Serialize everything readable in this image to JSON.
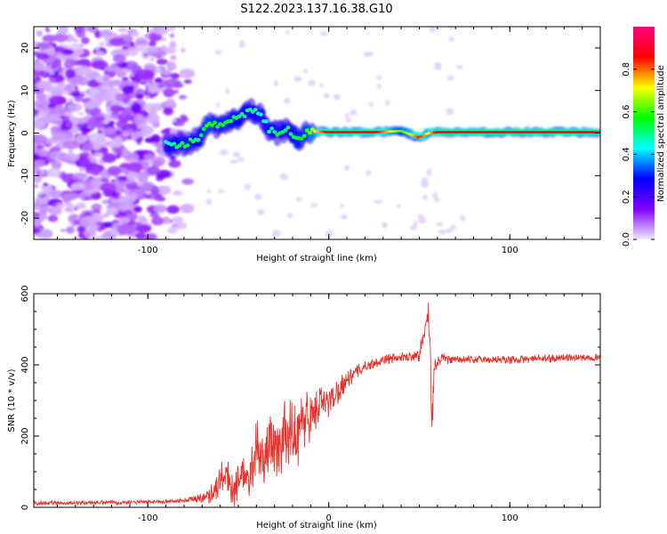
{
  "title": "S122.2023.137.16.38.G10",
  "chart_data": [
    {
      "type": "heatmap",
      "xlabel": "Height of straight line (km)",
      "ylabel": "Frequency (Hz)",
      "xlim": [
        -163,
        150
      ],
      "ylim": [
        -25,
        25
      ],
      "x_ticks": [
        -100,
        0,
        100
      ],
      "y_ticks": [
        -20,
        -10,
        0,
        10,
        20
      ],
      "colorbar": {
        "label": "Normalized spectral amplitude",
        "range": [
          0,
          1
        ],
        "ticks": [
          "0.0",
          "0.2",
          "0.4",
          "0.6",
          "0.8"
        ],
        "tick_values": [
          0,
          0.2,
          0.4,
          0.6,
          0.8
        ],
        "stops": [
          "#f0e8ff",
          "#8000ff",
          "#0000ff",
          "#00ffff",
          "#00ff00",
          "#ffff00",
          "#ff0000",
          "#ff0080"
        ]
      },
      "ridge": [
        {
          "x": -90,
          "y": -2.8,
          "amp": 0.45
        },
        {
          "x": -80,
          "y": -2.5,
          "amp": 0.55
        },
        {
          "x": -72,
          "y": -1.5,
          "amp": 0.5
        },
        {
          "x": -67,
          "y": 2.0,
          "amp": 0.6
        },
        {
          "x": -60,
          "y": 1.5,
          "amp": 0.55
        },
        {
          "x": -55,
          "y": 2.5,
          "amp": 0.55
        },
        {
          "x": -48,
          "y": 4.0,
          "amp": 0.5
        },
        {
          "x": -43,
          "y": 5.5,
          "amp": 0.5
        },
        {
          "x": -38,
          "y": 4.5,
          "amp": 0.45
        },
        {
          "x": -33,
          "y": 1.0,
          "amp": 0.45
        },
        {
          "x": -28,
          "y": 0.0,
          "amp": 0.55
        },
        {
          "x": -22,
          "y": 0.8,
          "amp": 0.5
        },
        {
          "x": -17,
          "y": -2.0,
          "amp": 0.55
        },
        {
          "x": -12,
          "y": 0.5,
          "amp": 0.6
        },
        {
          "x": 0,
          "y": 0.2,
          "amp": 0.9
        },
        {
          "x": 25,
          "y": 0.2,
          "amp": 0.9
        },
        {
          "x": 40,
          "y": 0.5,
          "amp": 0.6
        },
        {
          "x": 45,
          "y": -0.3,
          "amp": 0.7
        },
        {
          "x": 50,
          "y": -1.0,
          "amp": 0.85
        },
        {
          "x": 55,
          "y": 0.0,
          "amp": 0.7
        },
        {
          "x": 60,
          "y": 0.2,
          "amp": 0.9
        },
        {
          "x": 150,
          "y": 0.2,
          "amp": 0.9
        }
      ]
    },
    {
      "type": "line",
      "xlabel": "Height of straight line (km)",
      "ylabel": "SNR (10 * v/v)",
      "xlim": [
        -163,
        150
      ],
      "ylim": [
        0,
        600
      ],
      "x_ticks": [
        -100,
        0,
        100
      ],
      "y_ticks": [
        0,
        200,
        400,
        600
      ],
      "series": [
        {
          "color": "#e8322a",
          "x": [
            -163,
            -150,
            -130,
            -110,
            -95,
            -85,
            -78,
            -72,
            -66,
            -62,
            -58,
            -55,
            -52,
            -48,
            -44,
            -40,
            -36,
            -32,
            -28,
            -24,
            -20,
            -16,
            -12,
            -8,
            -4,
            0,
            5,
            10,
            15,
            20,
            25,
            30,
            35,
            40,
            45,
            50,
            52,
            54,
            55,
            56,
            57,
            58,
            60,
            62,
            65,
            70,
            80,
            90,
            100,
            110,
            120,
            130,
            140,
            150
          ],
          "y": [
            12,
            12,
            13,
            14,
            16,
            18,
            20,
            25,
            35,
            60,
            90,
            70,
            50,
            110,
            60,
            180,
            120,
            200,
            150,
            230,
            190,
            220,
            260,
            270,
            290,
            300,
            330,
            360,
            380,
            395,
            405,
            415,
            418,
            420,
            425,
            430,
            470,
            520,
            560,
            440,
            230,
            380,
            400,
            418,
            416,
            414,
            415,
            415,
            414,
            416,
            418,
            420,
            421,
            423
          ],
          "noise": [
            6,
            6,
            6,
            6,
            6,
            6,
            8,
            12,
            25,
            45,
            55,
            60,
            50,
            70,
            60,
            90,
            80,
            100,
            90,
            110,
            100,
            100,
            90,
            70,
            60,
            50,
            40,
            30,
            20,
            15,
            15,
            15,
            15,
            15,
            15,
            20,
            30,
            40,
            40,
            60,
            60,
            40,
            20,
            15,
            15,
            12,
            12,
            12,
            12,
            12,
            12,
            12,
            12,
            12
          ]
        }
      ]
    }
  ]
}
